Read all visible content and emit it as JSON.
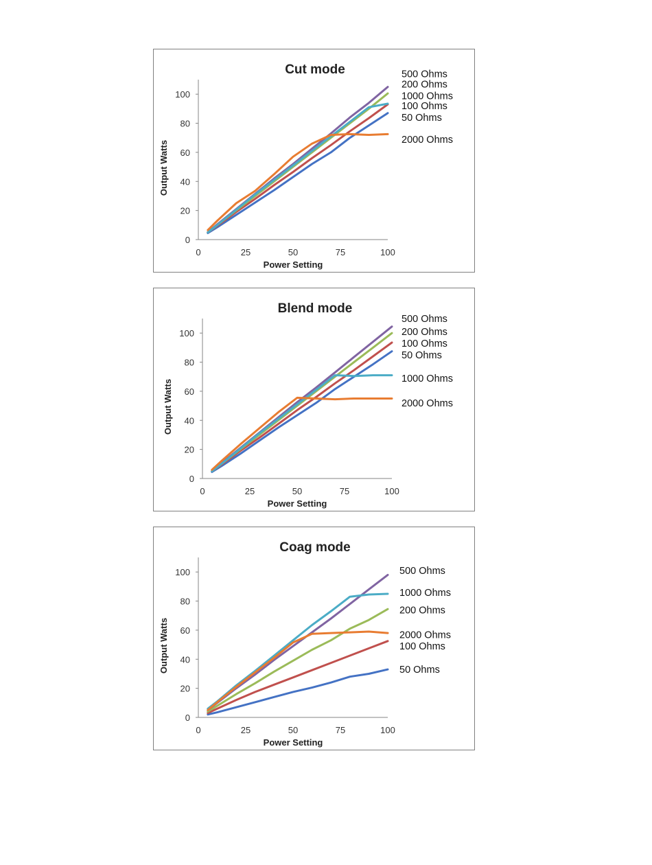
{
  "chart_data": [
    {
      "type": "line",
      "title": "Cut mode",
      "xlabel": "Power Setting",
      "ylabel": "Output Watts",
      "xlim": [
        0,
        100
      ],
      "ylim": [
        0,
        110
      ],
      "xticks": [
        0,
        25,
        50,
        75,
        100
      ],
      "yticks": [
        0,
        20,
        40,
        60,
        80,
        100
      ],
      "legend": "right",
      "series": [
        {
          "name": "50 Ohms",
          "color": "#4472c4",
          "label_value": 84,
          "x": [
            5,
            10,
            20,
            30,
            40,
            50,
            60,
            70,
            80,
            90,
            100
          ],
          "y": [
            4.5,
            8.5,
            17,
            25.5,
            34,
            43,
            52,
            60,
            70,
            78.5,
            87
          ]
        },
        {
          "name": "100 Ohms",
          "color": "#c0504d",
          "label_value": 92,
          "x": [
            5,
            10,
            20,
            30,
            40,
            50,
            60,
            70,
            80,
            90,
            100
          ],
          "y": [
            5,
            9.5,
            19,
            28,
            37.5,
            46.5,
            56,
            65,
            74.5,
            83.5,
            93
          ]
        },
        {
          "name": "200 Ohms",
          "color": "#9bbb59",
          "label_value": 107,
          "x": [
            5,
            10,
            20,
            30,
            40,
            50,
            60,
            70,
            80,
            90,
            100
          ],
          "y": [
            5,
            10,
            20,
            30,
            40,
            50,
            60,
            70,
            80,
            90,
            100.5
          ]
        },
        {
          "name": "500 Ohms",
          "color": "#8064a2",
          "label_value": 114,
          "x": [
            5,
            10,
            20,
            30,
            40,
            50,
            60,
            70,
            80,
            90,
            100
          ],
          "y": [
            5,
            10.5,
            21,
            31.5,
            42,
            52,
            62.5,
            73,
            84,
            94,
            105
          ]
        },
        {
          "name": "1000 Ohms",
          "color": "#4bacc6",
          "label_value": 99,
          "x": [
            5,
            10,
            20,
            30,
            40,
            50,
            60,
            70,
            80,
            90,
            100
          ],
          "y": [
            5,
            10,
            20.5,
            31,
            41,
            51,
            61,
            71,
            81,
            91,
            93.5
          ]
        },
        {
          "name": "2000 Ohms",
          "color": "#e87c31",
          "label_value": 69,
          "x": [
            5,
            10,
            20,
            30,
            40,
            50,
            60,
            70,
            80,
            90,
            100
          ],
          "y": [
            6.5,
            13,
            25,
            33.5,
            45,
            57,
            66,
            72,
            72.5,
            72,
            72.5
          ]
        }
      ]
    },
    {
      "type": "line",
      "title": "Blend mode",
      "xlabel": "Power Setting",
      "ylabel": "Output Watts",
      "xlim": [
        0,
        100
      ],
      "ylim": [
        0,
        110
      ],
      "xticks": [
        0,
        25,
        50,
        75,
        100
      ],
      "yticks": [
        0,
        20,
        40,
        60,
        80,
        100
      ],
      "legend": "right",
      "series": [
        {
          "name": "50 Ohms",
          "color": "#4472c4",
          "label_value": 85,
          "x": [
            5,
            10,
            20,
            30,
            40,
            50,
            60,
            70,
            80,
            90,
            100
          ],
          "y": [
            4.5,
            8.5,
            17,
            26,
            35,
            43.5,
            52,
            61.5,
            70,
            78.5,
            87.5
          ]
        },
        {
          "name": "100 Ohms",
          "color": "#c0504d",
          "label_value": 93,
          "x": [
            5,
            10,
            20,
            30,
            40,
            50,
            60,
            70,
            80,
            90,
            100
          ],
          "y": [
            5,
            9.5,
            19,
            28,
            37.5,
            47,
            56,
            65.5,
            74.5,
            84,
            93.5
          ]
        },
        {
          "name": "200 Ohms",
          "color": "#9bbb59",
          "label_value": 101,
          "x": [
            5,
            10,
            20,
            30,
            40,
            50,
            60,
            70,
            80,
            90,
            100
          ],
          "y": [
            5,
            10,
            20,
            30,
            40,
            50,
            60,
            70,
            80,
            90,
            100
          ]
        },
        {
          "name": "500 Ohms",
          "color": "#8064a2",
          "label_value": 110,
          "x": [
            5,
            10,
            20,
            30,
            40,
            50,
            60,
            70,
            80,
            90,
            100
          ],
          "y": [
            5,
            10.5,
            21,
            31.5,
            42,
            52.5,
            62.5,
            73,
            83.5,
            94,
            104.5
          ]
        },
        {
          "name": "1000 Ohms",
          "color": "#4bacc6",
          "label_value": 69,
          "x": [
            5,
            10,
            20,
            30,
            40,
            50,
            60,
            70,
            80,
            90,
            100
          ],
          "y": [
            5,
            10,
            20.5,
            31,
            41,
            51,
            61,
            71,
            70.5,
            71,
            71
          ]
        },
        {
          "name": "2000 Ohms",
          "color": "#e87c31",
          "label_value": 52,
          "x": [
            5,
            10,
            20,
            30,
            40,
            50,
            60,
            70,
            80,
            90,
            100
          ],
          "y": [
            6,
            12,
            23.5,
            34.5,
            45.5,
            55.5,
            55,
            54.5,
            55,
            55,
            55
          ]
        }
      ]
    },
    {
      "type": "line",
      "title": "Coag mode",
      "xlabel": "Power Setting",
      "ylabel": "Output Watts",
      "xlim": [
        0,
        100
      ],
      "ylim": [
        0,
        110
      ],
      "xticks": [
        0,
        25,
        50,
        75,
        100
      ],
      "yticks": [
        0,
        20,
        40,
        60,
        80,
        100
      ],
      "legend": "right",
      "series": [
        {
          "name": "50 Ohms",
          "color": "#4472c4",
          "label_value": 33,
          "x": [
            5,
            10,
            20,
            30,
            40,
            50,
            60,
            70,
            80,
            90,
            100
          ],
          "y": [
            2,
            3.5,
            7,
            10.5,
            14,
            17.5,
            20.5,
            24,
            28,
            30,
            33
          ]
        },
        {
          "name": "100 Ohms",
          "color": "#c0504d",
          "label_value": 49,
          "x": [
            5,
            10,
            20,
            30,
            40,
            50,
            60,
            70,
            80,
            90,
            100
          ],
          "y": [
            3,
            6,
            12,
            17.5,
            22.5,
            27.5,
            32.5,
            37.5,
            42.5,
            47.5,
            52.5
          ]
        },
        {
          "name": "200 Ohms",
          "color": "#9bbb59",
          "label_value": 74,
          "x": [
            5,
            10,
            20,
            30,
            40,
            50,
            60,
            70,
            80,
            90,
            100
          ],
          "y": [
            4,
            8,
            16,
            23.5,
            31.5,
            39,
            46.5,
            53,
            61,
            67,
            74.5
          ]
        },
        {
          "name": "500 Ohms",
          "color": "#8064a2",
          "label_value": 101,
          "x": [
            5,
            10,
            20,
            30,
            40,
            50,
            60,
            70,
            80,
            90,
            100
          ],
          "y": [
            5,
            10,
            20,
            29.5,
            39.5,
            49,
            58.5,
            68,
            78,
            88,
            98
          ]
        },
        {
          "name": "1000 Ohms",
          "color": "#4bacc6",
          "label_value": 86,
          "x": [
            5,
            10,
            20,
            30,
            40,
            50,
            60,
            70,
            80,
            90,
            100
          ],
          "y": [
            6,
            11,
            22,
            32,
            42.5,
            53,
            63.5,
            73,
            83,
            84.5,
            85
          ]
        },
        {
          "name": "2000 Ohms",
          "color": "#e87c31",
          "label_value": 57,
          "x": [
            5,
            10,
            20,
            30,
            40,
            50,
            60,
            70,
            80,
            90,
            100
          ],
          "y": [
            5,
            10.5,
            21,
            31,
            41,
            51.5,
            57.5,
            58,
            58.5,
            59,
            58
          ]
        }
      ]
    }
  ]
}
